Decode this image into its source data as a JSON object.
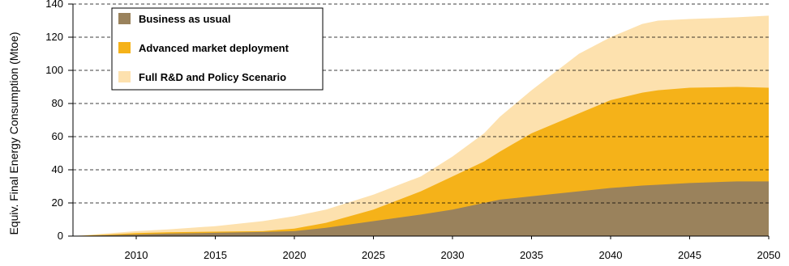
{
  "chart_data": {
    "type": "area",
    "stacked": true,
    "ylabel": "Equiv. Final Energy Consumption (Mtoe)",
    "xlabel": "",
    "xlim": [
      2006,
      2050
    ],
    "ylim": [
      0,
      140
    ],
    "x_ticks": [
      "2010",
      "2015",
      "2020",
      "2025",
      "2030",
      "2035",
      "2040",
      "2045",
      "2050"
    ],
    "y_ticks": [
      "0",
      "20",
      "40",
      "60",
      "80",
      "100",
      "120",
      "140"
    ],
    "grid": "horizontal dashed",
    "legend_position": "top-left",
    "x": [
      2006,
      2008,
      2010,
      2012,
      2015,
      2018,
      2020,
      2022,
      2025,
      2028,
      2030,
      2032,
      2033,
      2035,
      2038,
      2040,
      2042,
      2043,
      2045,
      2048,
      2050
    ],
    "series": [
      {
        "name": "Business as usual",
        "color": "#9a825c",
        "values": [
          0,
          0.5,
          1,
          1.5,
          2,
          2.5,
          3,
          5,
          9,
          13,
          16,
          20,
          22,
          24,
          27,
          29,
          30.5,
          31,
          32,
          33,
          33
        ]
      },
      {
        "name": "Advanced market deployment",
        "color": "#f5b219",
        "values": [
          0,
          0.8,
          1.8,
          2.3,
          2.7,
          3,
          4.5,
          8,
          16,
          27,
          36,
          45,
          51,
          62,
          74,
          82,
          86.5,
          88,
          89.5,
          90,
          89.5
        ]
      },
      {
        "name": "Full R&D and Policy Scenario",
        "color": "#fde1ae",
        "values": [
          0,
          1.5,
          3,
          4,
          6,
          9,
          12,
          16,
          25,
          36,
          48,
          62,
          72,
          88,
          110,
          120,
          128,
          130,
          131,
          132,
          133
        ]
      }
    ]
  }
}
